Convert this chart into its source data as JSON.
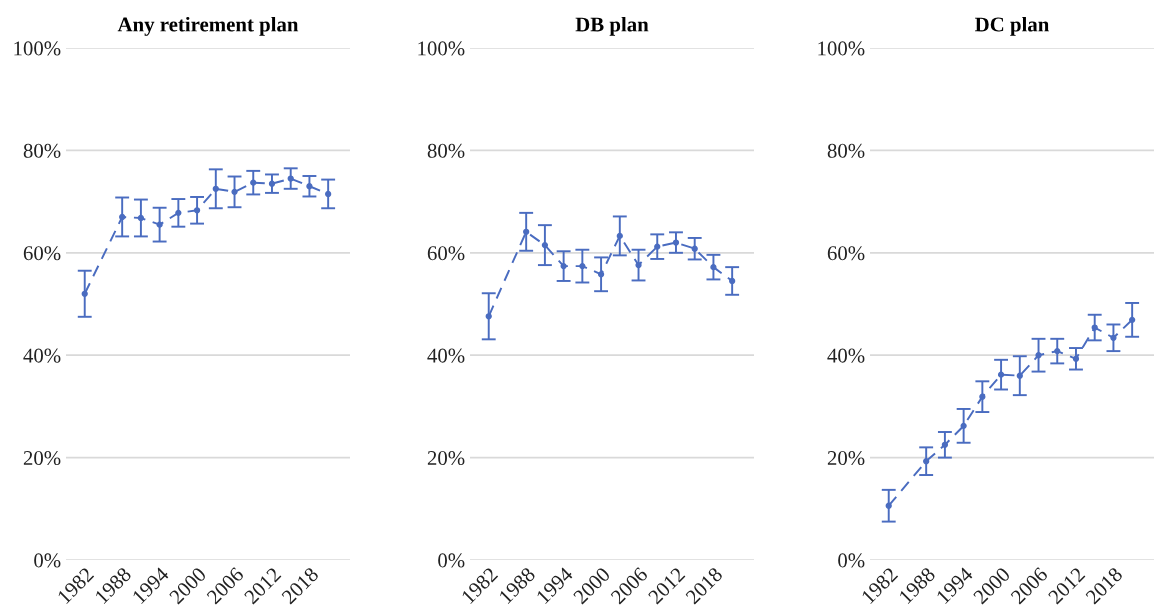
{
  "chart_data": [
    {
      "type": "line",
      "title": "Any retirement plan",
      "x": [
        1982,
        1988,
        1991,
        1994,
        1997,
        2000,
        2003,
        2006,
        2009,
        2012,
        2015,
        2018,
        2021
      ],
      "series": [
        {
          "color": "#4a6cc0",
          "values": [
            52,
            67,
            66.8,
            65.5,
            67.8,
            68.3,
            72.5,
            71.9,
            73.7,
            73.5,
            74.5,
            73,
            71.5
          ],
          "errors": [
            4.5,
            3.8,
            3.6,
            3.3,
            2.7,
            2.6,
            3.8,
            3,
            2.3,
            1.8,
            2,
            2,
            2.8
          ]
        }
      ],
      "xlim": [
        1979,
        2024.5
      ],
      "xticks": [
        1982,
        1988,
        1994,
        2000,
        2006,
        2012,
        2018
      ],
      "ylim": [
        0,
        100
      ],
      "yticks": [
        {
          "value": 0,
          "label": "0%"
        },
        {
          "value": 20,
          "label": "20%"
        },
        {
          "value": 40,
          "label": "40%"
        },
        {
          "value": 60,
          "label": "60%"
        },
        {
          "value": 80,
          "label": "80%"
        },
        {
          "value": 100,
          "label": "100%"
        }
      ],
      "grid": "y",
      "legend": false,
      "marker": "circle",
      "line_style": "dashed"
    },
    {
      "type": "line",
      "title": "DB plan",
      "x": [
        1982,
        1988,
        1991,
        1994,
        1997,
        2000,
        2003,
        2006,
        2009,
        2012,
        2015,
        2018,
        2021
      ],
      "series": [
        {
          "color": "#4a6cc0",
          "values": [
            47.6,
            64.1,
            61.5,
            57.4,
            57.4,
            55.8,
            63.3,
            57.6,
            61.2,
            62,
            60.8,
            57.2,
            54.5
          ],
          "errors": [
            4.5,
            3.7,
            3.9,
            2.9,
            3.2,
            3.3,
            3.8,
            3,
            2.4,
            2,
            2.1,
            2.4,
            2.7
          ]
        }
      ],
      "xlim": [
        1979,
        2024.5
      ],
      "xticks": [
        1982,
        1988,
        1994,
        2000,
        2006,
        2012,
        2018
      ],
      "ylim": [
        0,
        100
      ],
      "yticks": [
        {
          "value": 0,
          "label": "0%"
        },
        {
          "value": 20,
          "label": "20%"
        },
        {
          "value": 40,
          "label": "40%"
        },
        {
          "value": 60,
          "label": "60%"
        },
        {
          "value": 80,
          "label": "80%"
        },
        {
          "value": 100,
          "label": "100%"
        }
      ],
      "grid": "y",
      "legend": false,
      "marker": "circle",
      "line_style": "dashed"
    },
    {
      "type": "line",
      "title": "DC plan",
      "x": [
        1982,
        1988,
        1991,
        1994,
        1997,
        2000,
        2003,
        2006,
        2009,
        2012,
        2015,
        2018,
        2021
      ],
      "series": [
        {
          "color": "#4a6cc0",
          "values": [
            10.6,
            19.3,
            22.5,
            26.2,
            31.9,
            36.2,
            36,
            40,
            40.8,
            39.3,
            45.4,
            43.4,
            46.9
          ],
          "errors": [
            3.1,
            2.7,
            2.5,
            3.3,
            3,
            2.9,
            3.8,
            3.2,
            2.4,
            2.1,
            2.5,
            2.6,
            3.3
          ]
        }
      ],
      "xlim": [
        1979,
        2024.5
      ],
      "xticks": [
        1982,
        1988,
        1994,
        2000,
        2006,
        2012,
        2018
      ],
      "ylim": [
        0,
        100
      ],
      "yticks": [
        {
          "value": 0,
          "label": "0%"
        },
        {
          "value": 20,
          "label": "20%"
        },
        {
          "value": 40,
          "label": "40%"
        },
        {
          "value": 60,
          "label": "60%"
        },
        {
          "value": 80,
          "label": "80%"
        },
        {
          "value": 100,
          "label": "100%"
        }
      ],
      "grid": "y",
      "legend": false,
      "marker": "circle",
      "line_style": "dashed"
    }
  ]
}
